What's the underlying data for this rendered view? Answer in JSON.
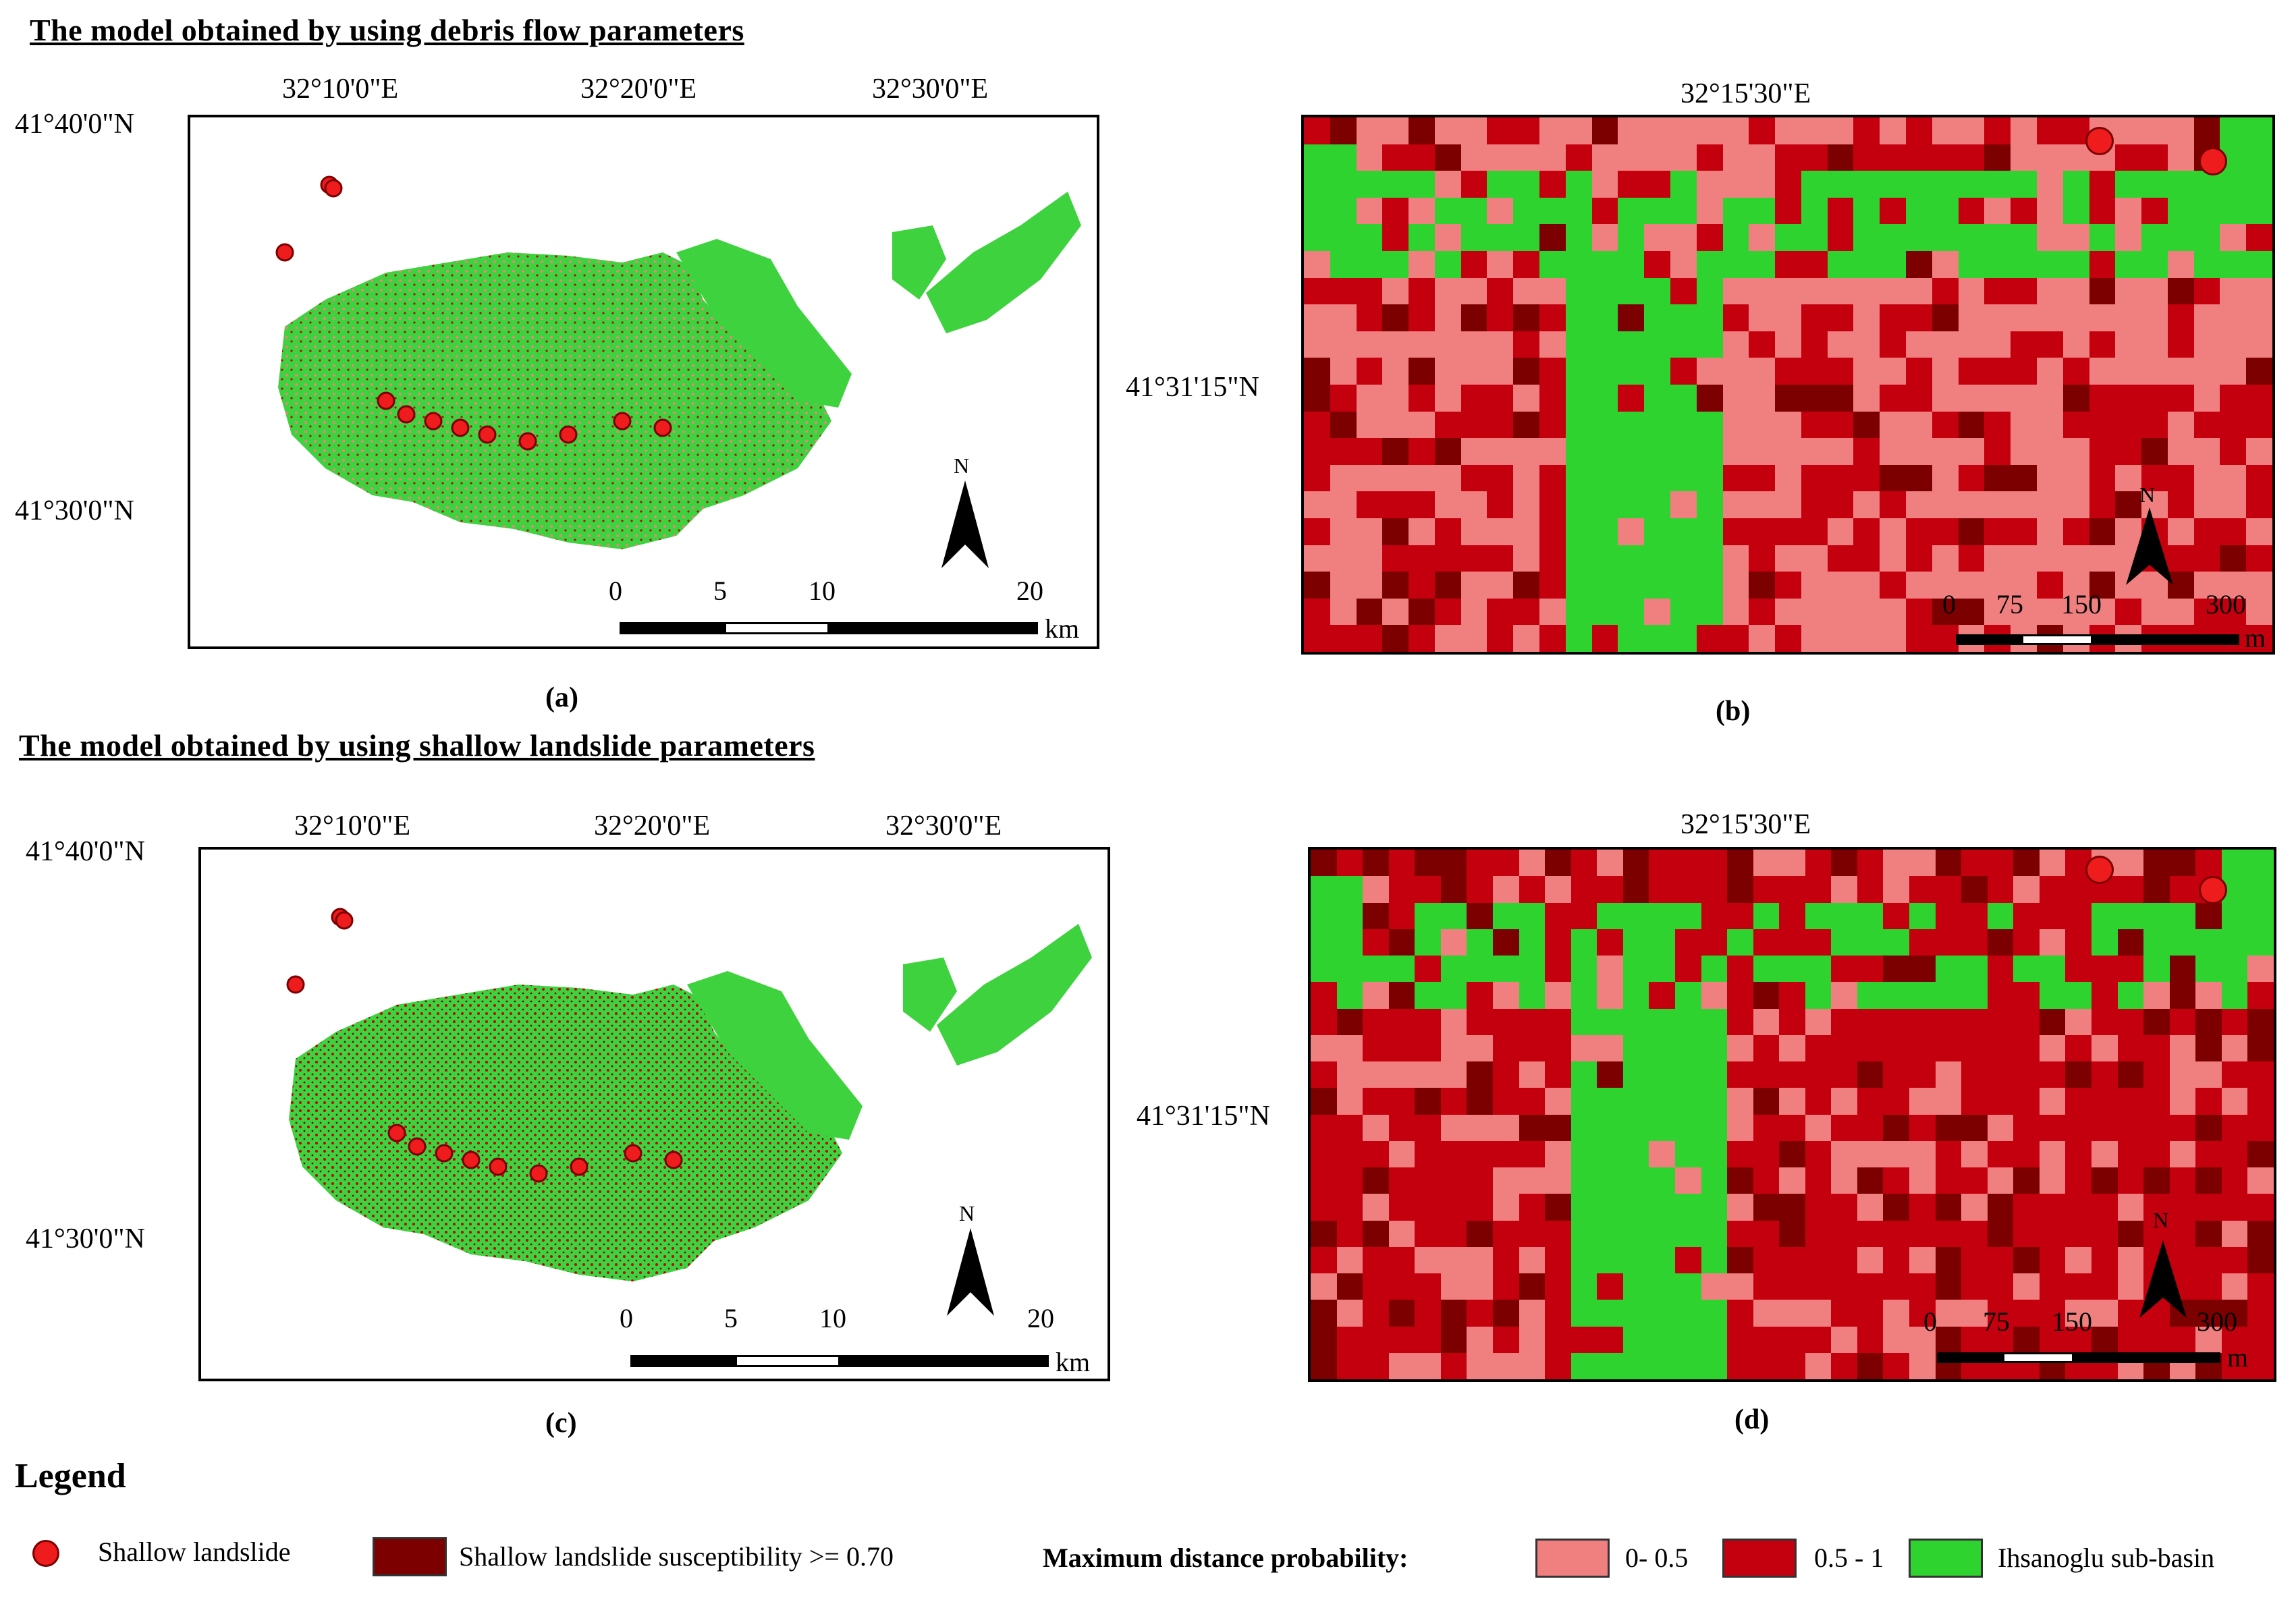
{
  "headers": {
    "debris": "The model obtained by using debris flow parameters",
    "shallow": "The model obtained by using shallow landslide parameters"
  },
  "overview": {
    "lon_ticks": [
      "32°10'0\"E",
      "32°20'0\"E",
      "32°30'0\"E"
    ],
    "lat_ticks": [
      "41°40'0\"N",
      "41°30'0\"N"
    ],
    "scale_ticks": [
      "0",
      "5",
      "10",
      "20"
    ],
    "scale_unit": "km"
  },
  "zoom": {
    "lon_tick": "32°15'30\"E",
    "lat_tick": "41°31'15\"N",
    "scale_ticks": [
      "0",
      "75",
      "150",
      "300"
    ],
    "scale_unit": "m"
  },
  "north_label": "N",
  "captions": [
    "(a)",
    "(b)",
    "(c)",
    "(d)"
  ],
  "legend": {
    "title": "Legend",
    "shallow_landslide": "Shallow landslide",
    "susceptibility": "Shallow landslide susceptibility >= 0.70",
    "max_distance_title": "Maximum distance probability:",
    "range_low": "0- 0.5",
    "range_high": "0.5 - 1",
    "subbasin": "Ihsanoglu sub-basin"
  },
  "colors": {
    "pink": "#f08080",
    "red": "#c4000f",
    "darkred": "#7d0000",
    "green": "#2fd32f",
    "landslide_dot": "#ee1c1c"
  }
}
